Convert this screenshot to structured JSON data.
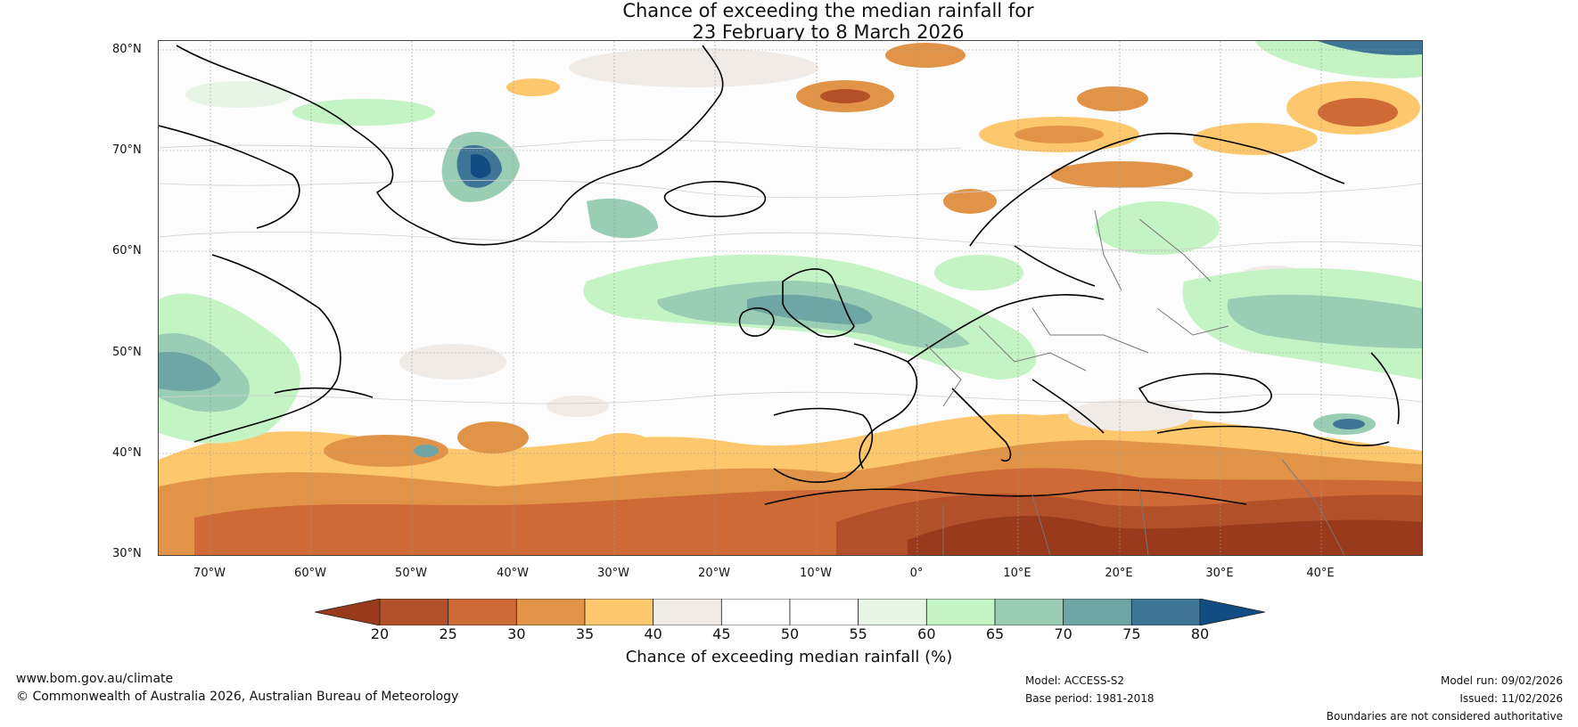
{
  "title": {
    "line1": "Chance of exceeding the median rainfall for",
    "line2": "23 February to 8 March 2026"
  },
  "map": {
    "lat_labels": [
      "80°N",
      "70°N",
      "60°N",
      "50°N",
      "40°N",
      "30°N"
    ],
    "lon_labels": [
      "70°W",
      "60°W",
      "50°W",
      "40°W",
      "30°W",
      "20°W",
      "10°W",
      "0°",
      "10°E",
      "20°E",
      "30°E",
      "40°E"
    ],
    "region": "North Atlantic, Europe and Mediterranean"
  },
  "colorbar": {
    "ticks": [
      "20",
      "25",
      "30",
      "35",
      "40",
      "45",
      "50",
      "55",
      "60",
      "65",
      "70",
      "75",
      "80"
    ],
    "colors": [
      "#9a3a1c",
      "#b2502a",
      "#cd6a35",
      "#e19448",
      "#fdc86d",
      "#f0ebe6",
      "#ffffff",
      "#ffffff",
      "#e7f5e7",
      "#c4f3c4",
      "#99cdb4",
      "#6ea6a6",
      "#3e7597",
      "#114c82"
    ],
    "label": "Chance of exceeding median rainfall (%)"
  },
  "footer": {
    "website": "www.bom.gov.au/climate",
    "copyright": "© Commonwealth of Australia 2026, Australian Bureau of Meteorology",
    "model": "Model: ACCESS-S2",
    "base_period": "Base period: 1981-2018",
    "model_run": "Model run: 09/02/2026",
    "issued": "Issued: 11/02/2026",
    "disclaimer": "Boundaries are not considered authoritative"
  }
}
